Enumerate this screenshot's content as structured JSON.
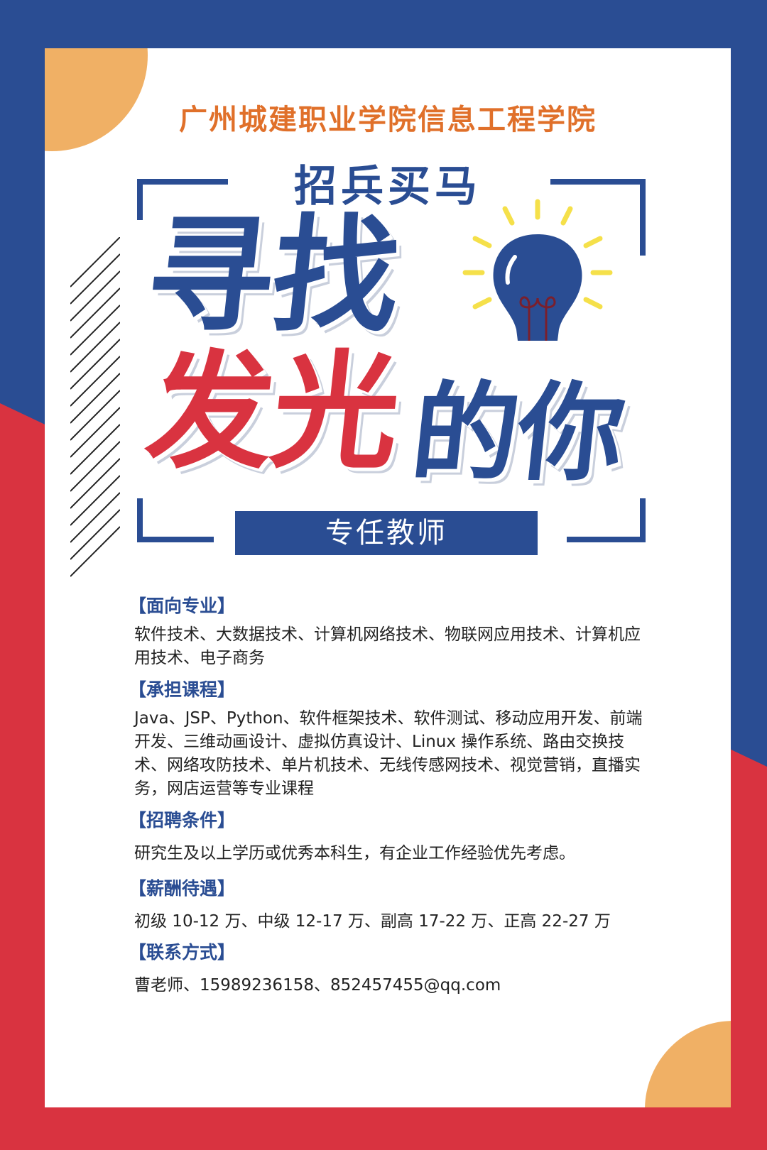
{
  "theme": {
    "blue": "#2a4d93",
    "red": "#d93340",
    "orange": "#f0b065",
    "title_orange": "#e0702a",
    "bulb_yellow": "#f5e04a"
  },
  "poster": {
    "college": "广州城建职业学院信息工程学院",
    "slogan": "招兵买马",
    "headline_seek": "寻找",
    "headline_shine": "发光",
    "headline_you": "的你",
    "role": "专任教师",
    "icon": "lightbulb-icon"
  },
  "sections": [
    {
      "heading": "【面向专业】",
      "body": "软件技术、大数据技术、计算机网络技术、物联网应用技术、计算机应用技术、电子商务"
    },
    {
      "heading": "【承担课程】",
      "body": "Java、JSP、Python、软件框架技术、软件测试、移动应用开发、前端开发、三维动画设计、虚拟仿真设计、Linux 操作系统、路由交换技术、网络攻防技术、单片机技术、无线传感网技术、视觉营销，直播实务，网店运营等专业课程"
    },
    {
      "heading": "【招聘条件】",
      "body": "研究生及以上学历或优秀本科生，有企业工作经验优先考虑。"
    },
    {
      "heading": "【薪酬待遇】",
      "body": "初级 10-12 万、中级 12-17 万、副高 17-22 万、正高 22-27 万"
    },
    {
      "heading": "【联系方式】",
      "body": "曹老师、15989236158、852457455@qq.com"
    }
  ]
}
